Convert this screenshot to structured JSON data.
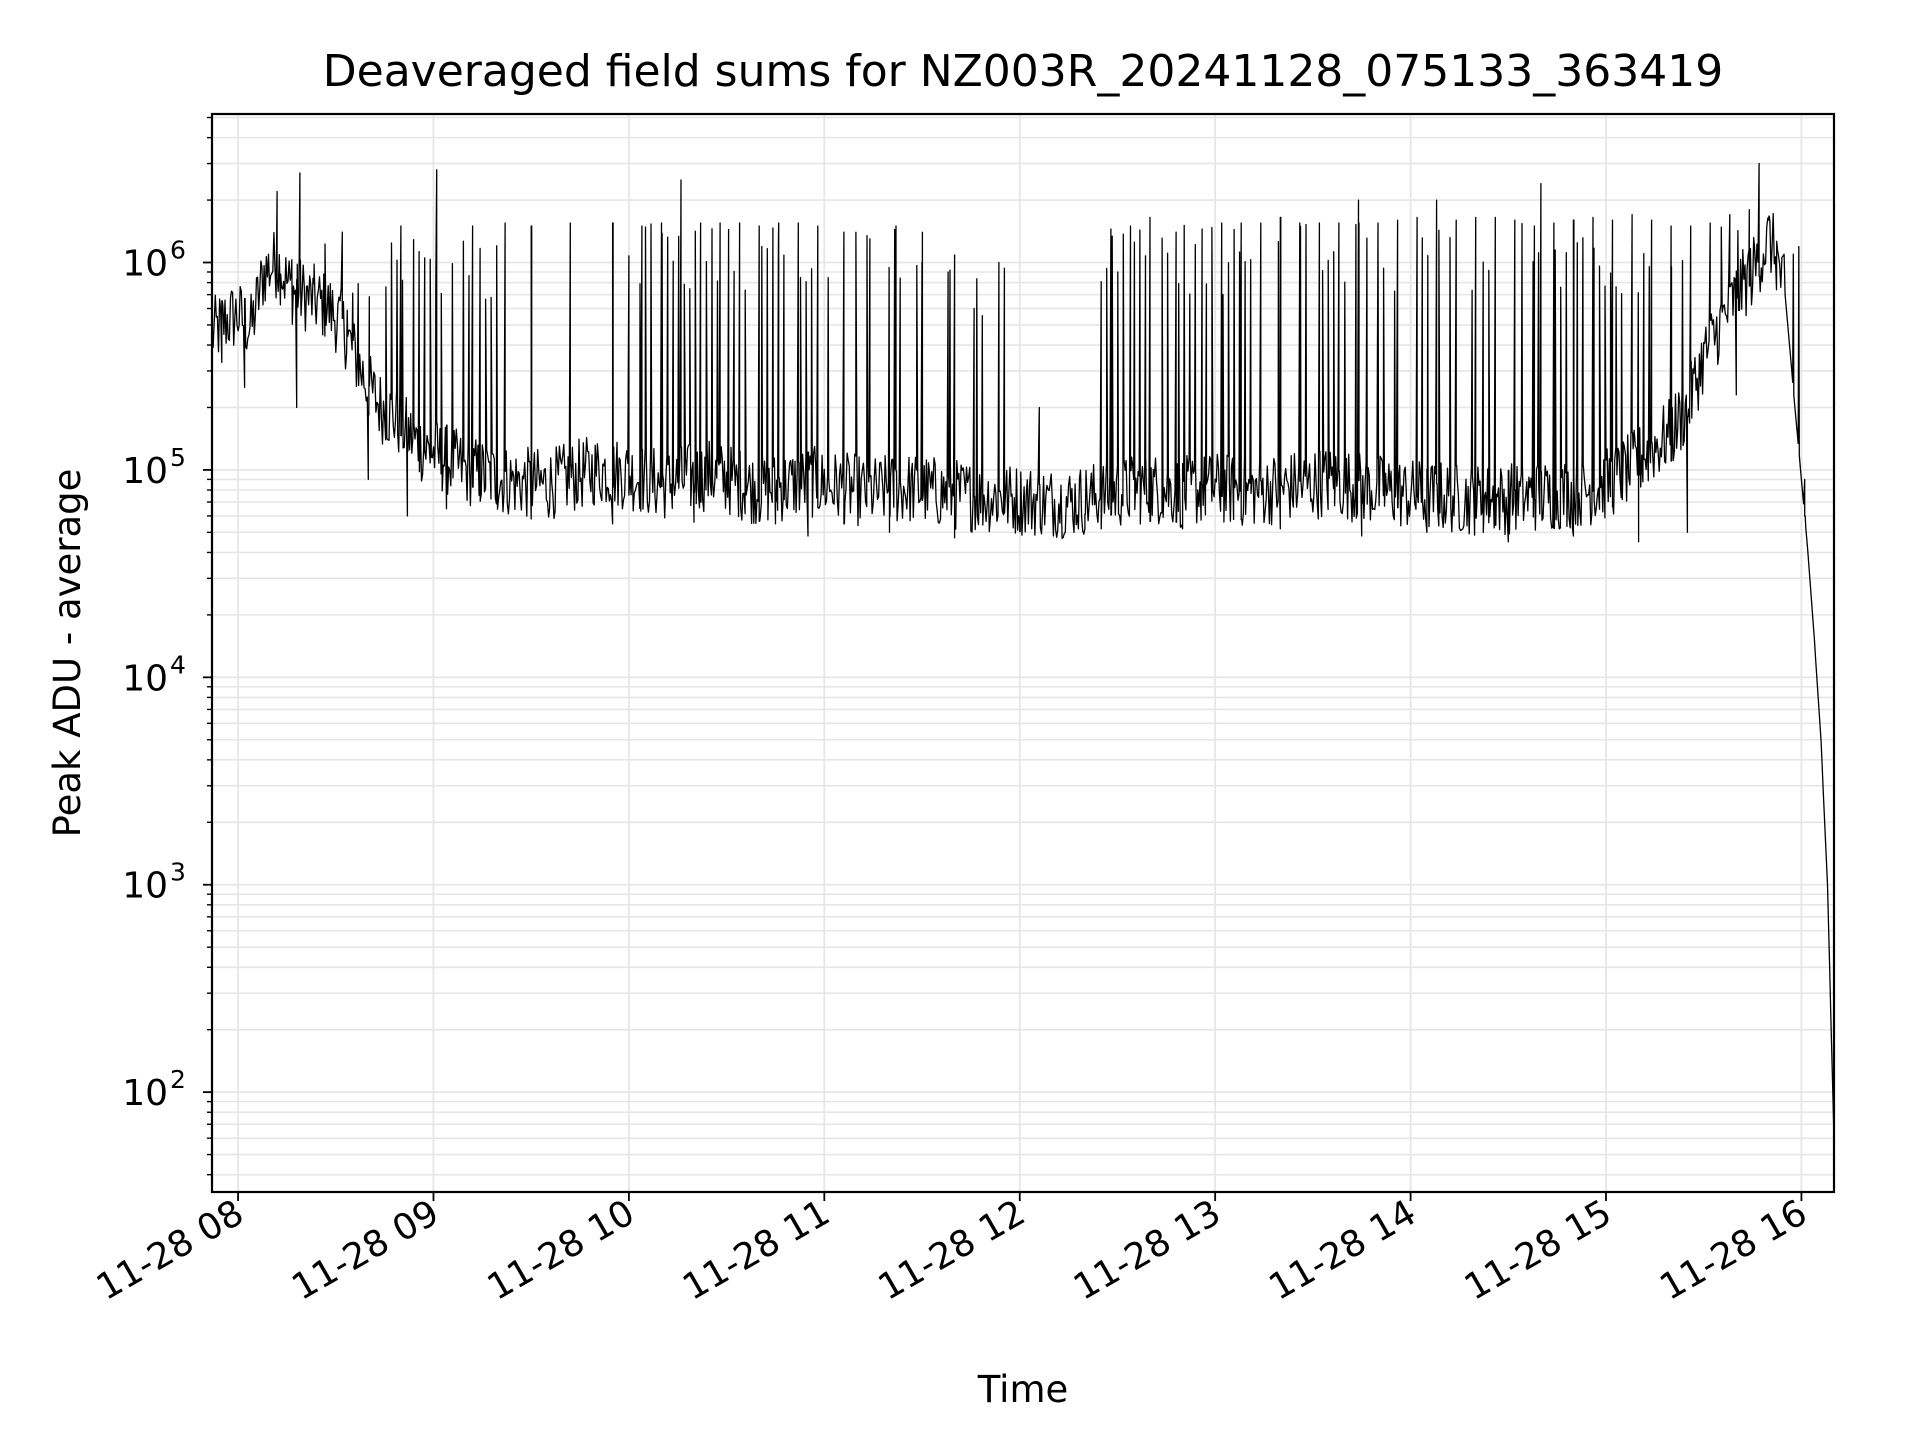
{
  "chart_data": {
    "type": "line",
    "title": "Deaveraged field sums for NZ003R_20241128_075133_363419",
    "xlabel": "Time",
    "ylabel": "Peak ADU - average",
    "yscale": "log",
    "grid": true,
    "legend": "none",
    "xlim": [
      "2024-11-28 07:52",
      "2024-11-28 16:10"
    ],
    "ylim": [
      33,
      5200000
    ],
    "x_ticks": [
      {
        "x": "2024-11-28 08:00",
        "label": "11-28 08"
      },
      {
        "x": "2024-11-28 09:00",
        "label": "11-28 09"
      },
      {
        "x": "2024-11-28 10:00",
        "label": "11-28 10"
      },
      {
        "x": "2024-11-28 11:00",
        "label": "11-28 11"
      },
      {
        "x": "2024-11-28 12:00",
        "label": "11-28 12"
      },
      {
        "x": "2024-11-28 13:00",
        "label": "11-28 13"
      },
      {
        "x": "2024-11-28 14:00",
        "label": "11-28 14"
      },
      {
        "x": "2024-11-28 15:00",
        "label": "11-28 15"
      },
      {
        "x": "2024-11-28 16:00",
        "label": "11-28 16"
      }
    ],
    "y_ticks": [
      {
        "value": 100,
        "base": "10",
        "exp": "2"
      },
      {
        "value": 1000,
        "base": "10",
        "exp": "3"
      },
      {
        "value": 10000,
        "base": "10",
        "exp": "4"
      },
      {
        "value": 100000,
        "base": "10",
        "exp": "5"
      },
      {
        "value": 1000000,
        "base": "10",
        "exp": "6"
      }
    ],
    "line_color": "#000000",
    "series": [
      {
        "x": [
          "2024-11-28 07:52",
          "2024-11-28 07:56",
          "2024-11-28 08:00",
          "2024-11-28 08:04",
          "2024-11-28 08:08",
          "2024-11-28 08:12",
          "2024-11-28 08:16",
          "2024-11-28 08:20",
          "2024-11-28 08:24",
          "2024-11-28 08:28",
          "2024-11-28 08:32",
          "2024-11-28 08:36",
          "2024-11-28 08:40",
          "2024-11-28 08:44",
          "2024-11-28 08:48",
          "2024-11-28 08:52",
          "2024-11-28 08:56",
          "2024-11-28 09:00",
          "2024-11-28 09:05",
          "2024-11-28 09:10",
          "2024-11-28 09:15",
          "2024-11-28 09:20",
          "2024-11-28 09:25",
          "2024-11-28 09:30",
          "2024-11-28 09:35",
          "2024-11-28 09:40",
          "2024-11-28 09:45",
          "2024-11-28 09:50",
          "2024-11-28 09:55",
          "2024-11-28 10:00",
          "2024-11-28 10:05",
          "2024-11-28 10:10",
          "2024-11-28 10:15",
          "2024-11-28 10:20",
          "2024-11-28 10:25",
          "2024-11-28 10:30",
          "2024-11-28 10:35",
          "2024-11-28 10:40",
          "2024-11-28 10:45",
          "2024-11-28 10:50",
          "2024-11-28 10:55",
          "2024-11-28 11:00",
          "2024-11-28 11:05",
          "2024-11-28 11:10",
          "2024-11-28 11:15",
          "2024-11-28 11:20",
          "2024-11-28 11:25",
          "2024-11-28 11:30",
          "2024-11-28 11:35",
          "2024-11-28 11:40",
          "2024-11-28 11:45",
          "2024-11-28 11:50",
          "2024-11-28 11:55",
          "2024-11-28 12:00",
          "2024-11-28 12:05",
          "2024-11-28 12:10",
          "2024-11-28 12:15",
          "2024-11-28 12:20",
          "2024-11-28 12:25",
          "2024-11-28 12:30",
          "2024-11-28 12:35",
          "2024-11-28 12:40",
          "2024-11-28 12:45",
          "2024-11-28 12:50",
          "2024-11-28 12:55",
          "2024-11-28 13:00",
          "2024-11-28 13:05",
          "2024-11-28 13:10",
          "2024-11-28 13:15",
          "2024-11-28 13:20",
          "2024-11-28 13:25",
          "2024-11-28 13:30",
          "2024-11-28 13:35",
          "2024-11-28 13:40",
          "2024-11-28 13:45",
          "2024-11-28 13:50",
          "2024-11-28 13:55",
          "2024-11-28 14:00",
          "2024-11-28 14:05",
          "2024-11-28 14:10",
          "2024-11-28 14:15",
          "2024-11-28 14:20",
          "2024-11-28 14:25",
          "2024-11-28 14:30",
          "2024-11-28 14:35",
          "2024-11-28 14:40",
          "2024-11-28 14:45",
          "2024-11-28 14:50",
          "2024-11-28 14:55",
          "2024-11-28 15:00",
          "2024-11-28 15:05",
          "2024-11-28 15:10",
          "2024-11-28 15:15",
          "2024-11-28 15:20",
          "2024-11-28 15:25",
          "2024-11-28 15:30",
          "2024-11-28 15:35",
          "2024-11-28 15:40",
          "2024-11-28 15:45",
          "2024-11-28 15:50",
          "2024-11-28 15:52",
          "2024-11-28 15:55",
          "2024-11-28 15:58",
          "2024-11-28 16:00",
          "2024-11-28 16:02",
          "2024-11-28 16:04",
          "2024-11-28 16:06",
          "2024-11-28 16:08",
          "2024-11-28 16:10"
        ],
        "y": [
          450000,
          520000,
          560000,
          480000,
          900000,
          1000000,
          750000,
          700000,
          650000,
          600000,
          500000,
          350000,
          250000,
          200000,
          180000,
          150000,
          130000,
          120000,
          110000,
          100000,
          95000,
          90000,
          88000,
          86000,
          85000,
          90000,
          95000,
          100000,
          98000,
          95000,
          90000,
          85000,
          88000,
          92000,
          95000,
          90000,
          85000,
          80000,
          82000,
          85000,
          88000,
          85000,
          82000,
          80000,
          78000,
          80000,
          82000,
          80000,
          78000,
          76000,
          75000,
          74000,
          73000,
          72000,
          71000,
          70000,
          70000,
          72000,
          75000,
          78000,
          80000,
          82000,
          80000,
          78000,
          80000,
          82000,
          80000,
          78000,
          80000,
          82000,
          84000,
          86000,
          88000,
          85000,
          82000,
          80000,
          78000,
          76000,
          75000,
          74000,
          73000,
          72000,
          72000,
          73000,
          74000,
          75000,
          76000,
          78000,
          80000,
          85000,
          95000,
          110000,
          130000,
          150000,
          200000,
          350000,
          500000,
          700000,
          900000,
          1300000,
          1100000,
          700000,
          200000,
          90000,
          40000,
          15000,
          5000,
          1000,
          60
        ]
      }
    ],
    "spikes": [
      {
        "x": "2024-11-28 08:12",
        "y": 2200000
      },
      {
        "x": "2024-11-28 08:19",
        "y": 2700000
      },
      {
        "x": "2024-11-28 08:32",
        "y": 1400000
      },
      {
        "x": "2024-11-28 08:50",
        "y": 1500000
      },
      {
        "x": "2024-11-28 09:01",
        "y": 2800000
      },
      {
        "x": "2024-11-28 09:12",
        "y": 1500000
      },
      {
        "x": "2024-11-28 09:22",
        "y": 1550000
      },
      {
        "x": "2024-11-28 09:30",
        "y": 1500000
      },
      {
        "x": "2024-11-28 09:42",
        "y": 1550000
      },
      {
        "x": "2024-11-28 09:55",
        "y": 1550000
      },
      {
        "x": "2024-11-28 10:04",
        "y": 1500000
      },
      {
        "x": "2024-11-28 10:10",
        "y": 1550000
      },
      {
        "x": "2024-11-28 10:16",
        "y": 2500000
      },
      {
        "x": "2024-11-28 10:22",
        "y": 1550000
      },
      {
        "x": "2024-11-28 10:28",
        "y": 1550000
      },
      {
        "x": "2024-11-28 10:34",
        "y": 1550000
      },
      {
        "x": "2024-11-28 10:40",
        "y": 1500000
      },
      {
        "x": "2024-11-28 10:46",
        "y": 1550000
      },
      {
        "x": "2024-11-28 10:52",
        "y": 1550000
      },
      {
        "x": "2024-11-28 10:58",
        "y": 1500000
      },
      {
        "x": "2024-11-28 11:06",
        "y": 1400000
      },
      {
        "x": "2024-11-28 11:14",
        "y": 1300000
      },
      {
        "x": "2024-11-28 11:22",
        "y": 1500000
      },
      {
        "x": "2024-11-28 11:30",
        "y": 1000000
      },
      {
        "x": "2024-11-28 11:38",
        "y": 900000
      },
      {
        "x": "2024-11-28 11:46",
        "y": 600000
      },
      {
        "x": "2024-11-28 12:06",
        "y": 200000
      },
      {
        "x": "2024-11-28 12:28",
        "y": 1450000
      },
      {
        "x": "2024-11-28 12:34",
        "y": 1500000
      },
      {
        "x": "2024-11-28 12:40",
        "y": 1650000
      },
      {
        "x": "2024-11-28 12:48",
        "y": 1400000
      },
      {
        "x": "2024-11-28 12:56",
        "y": 1450000
      },
      {
        "x": "2024-11-28 13:02",
        "y": 1550000
      },
      {
        "x": "2024-11-28 13:08",
        "y": 1550000
      },
      {
        "x": "2024-11-28 13:14",
        "y": 1550000
      },
      {
        "x": "2024-11-28 13:20",
        "y": 1650000
      },
      {
        "x": "2024-11-28 13:26",
        "y": 1550000
      },
      {
        "x": "2024-11-28 13:32",
        "y": 1550000
      },
      {
        "x": "2024-11-28 13:38",
        "y": 1550000
      },
      {
        "x": "2024-11-28 13:44",
        "y": 1550000
      },
      {
        "x": "2024-11-28 13:50",
        "y": 1550000
      },
      {
        "x": "2024-11-28 13:56",
        "y": 1600000
      },
      {
        "x": "2024-11-28 14:02",
        "y": 1650000
      },
      {
        "x": "2024-11-28 14:08",
        "y": 2000000
      },
      {
        "x": "2024-11-28 14:14",
        "y": 1600000
      },
      {
        "x": "2024-11-28 14:20",
        "y": 1650000
      },
      {
        "x": "2024-11-28 14:26",
        "y": 1650000
      },
      {
        "x": "2024-11-28 14:32",
        "y": 1600000
      },
      {
        "x": "2024-11-28 14:38",
        "y": 1500000
      },
      {
        "x": "2024-11-28 14:44",
        "y": 1550000
      },
      {
        "x": "2024-11-28 14:50",
        "y": 1600000
      },
      {
        "x": "2024-11-28 14:56",
        "y": 1650000
      },
      {
        "x": "2024-11-28 15:02",
        "y": 1600000
      },
      {
        "x": "2024-11-28 15:08",
        "y": 1700000
      },
      {
        "x": "2024-11-28 15:14",
        "y": 1600000
      },
      {
        "x": "2024-11-28 15:20",
        "y": 1500000
      },
      {
        "x": "2024-11-28 15:26",
        "y": 1500000
      },
      {
        "x": "2024-11-28 15:32",
        "y": 1550000
      },
      {
        "x": "2024-11-28 15:38",
        "y": 1700000
      },
      {
        "x": "2024-11-28 15:44",
        "y": 1800000
      },
      {
        "x": "2024-11-28 15:47",
        "y": 3000000
      },
      {
        "x": "2024-11-28 15:50",
        "y": 1600000
      },
      {
        "x": "2024-11-28 14:40",
        "y": 2400000
      },
      {
        "x": "2024-11-28 13:44",
        "y": 2000000
      },
      {
        "x": "2024-11-28 16:01",
        "y": 90000
      }
    ],
    "dips": [
      {
        "x": "2024-11-28 07:55",
        "y": 330000
      },
      {
        "x": "2024-11-28 08:02",
        "y": 250000
      },
      {
        "x": "2024-11-28 08:18",
        "y": 200000
      },
      {
        "x": "2024-11-28 08:40",
        "y": 90000
      },
      {
        "x": "2024-11-28 08:52",
        "y": 60000
      },
      {
        "x": "2024-11-28 09:04",
        "y": 65000
      },
      {
        "x": "2024-11-28 09:30",
        "y": 58000
      },
      {
        "x": "2024-11-28 09:55",
        "y": 55000
      },
      {
        "x": "2024-11-28 10:20",
        "y": 56000
      },
      {
        "x": "2024-11-28 10:45",
        "y": 55000
      },
      {
        "x": "2024-11-28 10:55",
        "y": 48000
      },
      {
        "x": "2024-11-28 11:20",
        "y": 50000
      },
      {
        "x": "2024-11-28 11:40",
        "y": 47000
      },
      {
        "x": "2024-11-28 12:00",
        "y": 55000
      },
      {
        "x": "2024-11-28 12:20",
        "y": 52000
      },
      {
        "x": "2024-11-28 12:50",
        "y": 52000
      },
      {
        "x": "2024-11-28 13:20",
        "y": 52000
      },
      {
        "x": "2024-11-28 13:45",
        "y": 48000
      },
      {
        "x": "2024-11-28 14:05",
        "y": 50000
      },
      {
        "x": "2024-11-28 14:30",
        "y": 45000
      },
      {
        "x": "2024-11-28 14:50",
        "y": 48000
      },
      {
        "x": "2024-11-28 15:10",
        "y": 45000
      },
      {
        "x": "2024-11-28 15:25",
        "y": 50000
      },
      {
        "x": "2024-11-28 15:40",
        "y": 230000
      }
    ]
  }
}
